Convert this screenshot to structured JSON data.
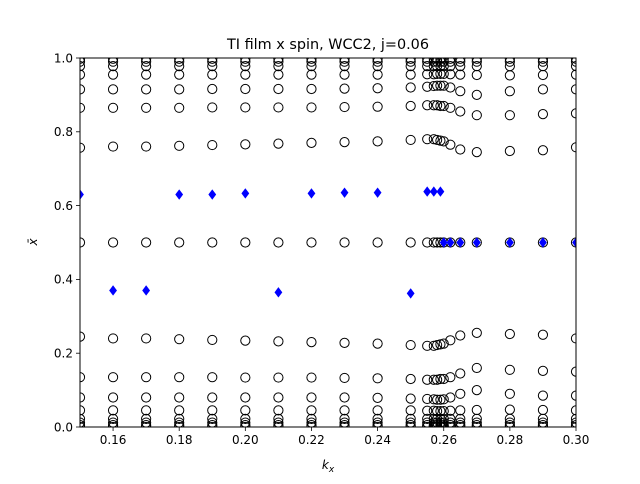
{
  "chart_data": {
    "type": "scatter",
    "title": "TI film x spin, WCC2, j=0.06",
    "xlabel": "k_x",
    "ylabel": "x̄",
    "xlim": [
      0.15,
      0.3
    ],
    "ylim": [
      0.0,
      1.0
    ],
    "x_ticks": [
      "0.16",
      "0.18",
      "0.20",
      "0.22",
      "0.24",
      "0.26",
      "0.28",
      "0.30"
    ],
    "y_ticks": [
      "0.0",
      "0.2",
      "0.4",
      "0.6",
      "0.8",
      "1.0"
    ],
    "grid": false,
    "legend": "none",
    "colors": {
      "circles": "#000000",
      "diamonds": "#0000ff"
    },
    "series": [
      {
        "marker": "open-circle",
        "x": [
          0.15,
          0.16,
          0.17,
          0.18,
          0.19,
          0.2,
          0.21,
          0.22,
          0.23,
          0.24,
          0.25,
          0.255,
          0.257,
          0.258,
          0.259,
          0.26,
          0.262,
          0.265,
          0.27,
          0.28,
          0.29,
          0.3
        ],
        "y_groups": [
          [
            0.0,
            0.005,
            0.012,
            0.022,
            0.045,
            0.08,
            0.135,
            0.245,
            0.5,
            0.757,
            0.865,
            0.915,
            0.955,
            0.978,
            0.99,
            0.998
          ],
          [
            0.0,
            0.005,
            0.012,
            0.022,
            0.045,
            0.08,
            0.135,
            0.24,
            0.5,
            0.76,
            0.865,
            0.915,
            0.955,
            0.978,
            0.99,
            0.998
          ],
          [
            0.0,
            0.005,
            0.012,
            0.022,
            0.045,
            0.08,
            0.135,
            0.24,
            0.5,
            0.76,
            0.865,
            0.915,
            0.955,
            0.978,
            0.99,
            0.998
          ],
          [
            0.0,
            0.005,
            0.012,
            0.022,
            0.045,
            0.08,
            0.135,
            0.238,
            0.5,
            0.762,
            0.865,
            0.915,
            0.955,
            0.978,
            0.99,
            0.998
          ],
          [
            0.0,
            0.005,
            0.012,
            0.022,
            0.045,
            0.08,
            0.135,
            0.236,
            0.5,
            0.764,
            0.866,
            0.916,
            0.955,
            0.978,
            0.99,
            0.998
          ],
          [
            0.0,
            0.005,
            0.012,
            0.022,
            0.045,
            0.08,
            0.134,
            0.234,
            0.5,
            0.766,
            0.866,
            0.916,
            0.955,
            0.978,
            0.99,
            0.998
          ],
          [
            0.0,
            0.005,
            0.012,
            0.022,
            0.045,
            0.08,
            0.134,
            0.232,
            0.5,
            0.768,
            0.866,
            0.916,
            0.955,
            0.978,
            0.99,
            0.998
          ],
          [
            0.0,
            0.005,
            0.012,
            0.022,
            0.045,
            0.08,
            0.134,
            0.23,
            0.5,
            0.77,
            0.866,
            0.916,
            0.955,
            0.978,
            0.99,
            0.998
          ],
          [
            0.0,
            0.005,
            0.012,
            0.022,
            0.045,
            0.08,
            0.133,
            0.228,
            0.5,
            0.772,
            0.867,
            0.917,
            0.955,
            0.978,
            0.99,
            0.998
          ],
          [
            0.0,
            0.005,
            0.012,
            0.022,
            0.045,
            0.079,
            0.132,
            0.226,
            0.5,
            0.774,
            0.868,
            0.918,
            0.955,
            0.978,
            0.99,
            0.998
          ],
          [
            0.0,
            0.005,
            0.012,
            0.022,
            0.045,
            0.077,
            0.13,
            0.222,
            0.5,
            0.778,
            0.87,
            0.92,
            0.955,
            0.978,
            0.99,
            0.998
          ],
          [
            0.0,
            0.005,
            0.012,
            0.022,
            0.044,
            0.076,
            0.128,
            0.22,
            0.5,
            0.78,
            0.872,
            0.922,
            0.956,
            0.978,
            0.99,
            0.998
          ],
          [
            0.0,
            0.005,
            0.012,
            0.022,
            0.044,
            0.075,
            0.128,
            0.22,
            0.5,
            0.78,
            0.872,
            0.924,
            0.956,
            0.978,
            0.99,
            0.998
          ],
          [
            0.0,
            0.005,
            0.012,
            0.022,
            0.043,
            0.074,
            0.128,
            0.222,
            0.5,
            0.778,
            0.872,
            0.925,
            0.957,
            0.978,
            0.99,
            0.998
          ],
          [
            0.0,
            0.005,
            0.012,
            0.022,
            0.043,
            0.074,
            0.13,
            0.224,
            0.5,
            0.776,
            0.87,
            0.925,
            0.957,
            0.978,
            0.99,
            0.998
          ],
          [
            0.0,
            0.005,
            0.012,
            0.022,
            0.043,
            0.075,
            0.13,
            0.226,
            0.5,
            0.774,
            0.87,
            0.925,
            0.957,
            0.978,
            0.99,
            0.998
          ],
          [
            0.0,
            0.005,
            0.012,
            0.022,
            0.044,
            0.08,
            0.135,
            0.235,
            0.5,
            0.765,
            0.865,
            0.92,
            0.956,
            0.978,
            0.99,
            0.998
          ],
          [
            0.0,
            0.005,
            0.012,
            0.022,
            0.045,
            0.09,
            0.145,
            0.248,
            0.5,
            0.752,
            0.855,
            0.91,
            0.955,
            0.978,
            0.99,
            0.998
          ],
          [
            0.0,
            0.005,
            0.012,
            0.022,
            0.046,
            0.1,
            0.16,
            0.255,
            0.5,
            0.745,
            0.845,
            0.9,
            0.954,
            0.978,
            0.99,
            0.998
          ],
          [
            0.0,
            0.005,
            0.012,
            0.022,
            0.047,
            0.09,
            0.155,
            0.252,
            0.5,
            0.748,
            0.845,
            0.91,
            0.953,
            0.978,
            0.99,
            0.998
          ],
          [
            0.0,
            0.005,
            0.012,
            0.022,
            0.046,
            0.085,
            0.152,
            0.25,
            0.5,
            0.75,
            0.848,
            0.915,
            0.954,
            0.978,
            0.99,
            0.998
          ],
          [
            0.0,
            0.005,
            0.012,
            0.022,
            0.045,
            0.085,
            0.15,
            0.24,
            0.5,
            0.758,
            0.85,
            0.915,
            0.955,
            0.978,
            0.99,
            0.998
          ]
        ]
      },
      {
        "marker": "filled-diamond",
        "points": [
          [
            0.15,
            0.63
          ],
          [
            0.16,
            0.37
          ],
          [
            0.17,
            0.37
          ],
          [
            0.18,
            0.63
          ],
          [
            0.19,
            0.63
          ],
          [
            0.2,
            0.633
          ],
          [
            0.21,
            0.365
          ],
          [
            0.22,
            0.633
          ],
          [
            0.23,
            0.635
          ],
          [
            0.24,
            0.635
          ],
          [
            0.25,
            0.362
          ],
          [
            0.255,
            0.638
          ],
          [
            0.257,
            0.638
          ],
          [
            0.259,
            0.638
          ],
          [
            0.26,
            0.5
          ],
          [
            0.262,
            0.5
          ],
          [
            0.265,
            0.5
          ],
          [
            0.27,
            0.5
          ],
          [
            0.28,
            0.5
          ],
          [
            0.29,
            0.5
          ],
          [
            0.3,
            0.5
          ]
        ]
      }
    ]
  }
}
